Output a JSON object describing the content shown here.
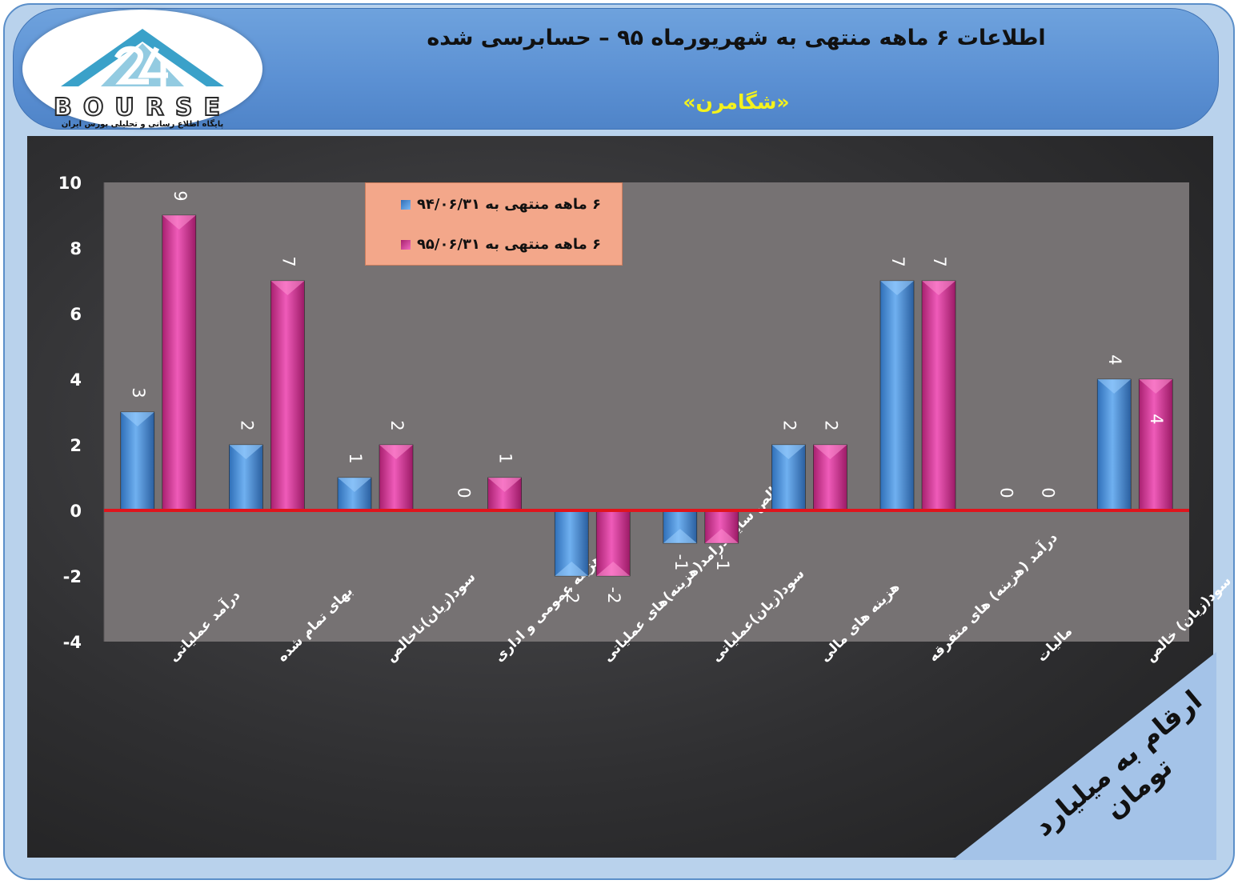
{
  "header": {
    "title": "اطلاعات ۶  ماهه منتهی به شهریورماه ۹۵ – حسابرسی شده",
    "subtitle": "«شگامرن»"
  },
  "logo": {
    "word": "BOURSE",
    "tagline": "پایگاه اطلاع رسانی و تحلیلی بورس ایران"
  },
  "legend": {
    "series1_label": "۶ ماهه منتهی به ۹۴/۰۶/۳۱",
    "series2_label": "۶ ماهه منتهی به ۹۵/۰۶/۳۱"
  },
  "corner_note": "ارقام به میلیارد تومان",
  "colors": {
    "series1": "#4f8fd6",
    "series2": "#d63a9c",
    "zero_line": "#e0141c",
    "plot_bg": "#767273"
  },
  "chart_data": {
    "type": "bar",
    "categories": [
      "درآمد عملیاتی",
      "بهای تمام شده",
      "سود(زیان)ناخالص",
      "هزینه عمومی و اداری",
      "خالص سایر درامد(هزینه)های عملیاتی",
      "سود(زیان)عملیاتی",
      "هزینه های مالی",
      "درآمد (هزینه) های متفرقه",
      "مالیات",
      "سود(زیان) خالص"
    ],
    "series": [
      {
        "name": "۶ ماهه منتهی به ۹۴/۰۶/۳۱",
        "values": [
          3,
          2,
          1,
          0,
          -2,
          -1,
          2,
          7,
          0,
          4
        ]
      },
      {
        "name": "۶ ماهه منتهی به ۹۵/۰۶/۳۱",
        "values": [
          9,
          7,
          2,
          1,
          -2,
          -1,
          2,
          7,
          0,
          4
        ]
      }
    ],
    "ylim": [
      -4,
      10
    ],
    "yticks": [
      10,
      8,
      6,
      4,
      2,
      0,
      -2,
      -4
    ],
    "grid": false
  }
}
